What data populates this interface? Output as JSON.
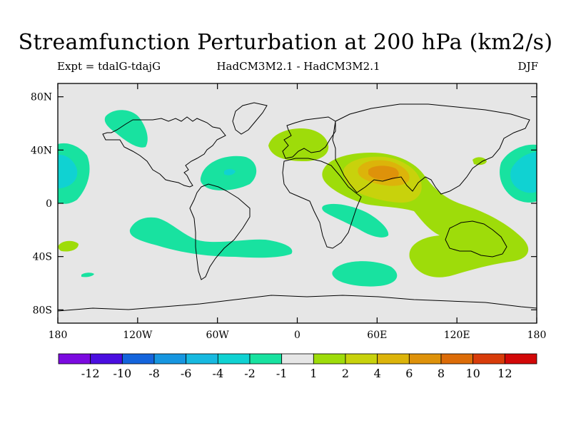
{
  "title": "Streamfunction Perturbation at 200 hPa (km2/s)",
  "subtitle": {
    "left": "Expt = tdalG-tdajG",
    "center": "HadCM3M2.1 - HadCM3M2.1",
    "right": "DJF"
  },
  "colors": {
    "map_background": "#e6e6e6",
    "coastline": "#000000",
    "frame": "#000000"
  },
  "y_ticks": [
    {
      "label": "80N",
      "lat": 80
    },
    {
      "label": "40N",
      "lat": 40
    },
    {
      "label": "0",
      "lat": 0
    },
    {
      "label": "40S",
      "lat": -40
    },
    {
      "label": "80S",
      "lat": -80
    }
  ],
  "x_ticks": [
    {
      "label": "180",
      "lon": -180
    },
    {
      "label": "120W",
      "lon": -120
    },
    {
      "label": "60W",
      "lon": -60
    },
    {
      "label": "0",
      "lon": 0
    },
    {
      "label": "60E",
      "lon": 60
    },
    {
      "label": "120E",
      "lon": 120
    },
    {
      "label": "180",
      "lon": 180
    }
  ],
  "colorbar": {
    "colors": [
      "#7b0ae0",
      "#4a0ee0",
      "#1464dc",
      "#1696e0",
      "#17b9e0",
      "#10d2d2",
      "#18e2a0",
      "#e6e6e6",
      "#9edc0a",
      "#c8d20c",
      "#dcb40a",
      "#de920a",
      "#dc6c08",
      "#d83c0a",
      "#d20808"
    ],
    "labels": [
      "-12",
      "-10",
      "-8",
      "-6",
      "-4",
      "-2",
      "-1",
      "1",
      "2",
      "4",
      "6",
      "8",
      "10",
      "12"
    ]
  },
  "legend_colors": {
    "neg1": "#18e2a0",
    "neg2": "#10d2d2",
    "pos1": "#9edc0a",
    "pos2": "#c8d20c",
    "pos4": "#dcb40a"
  }
}
